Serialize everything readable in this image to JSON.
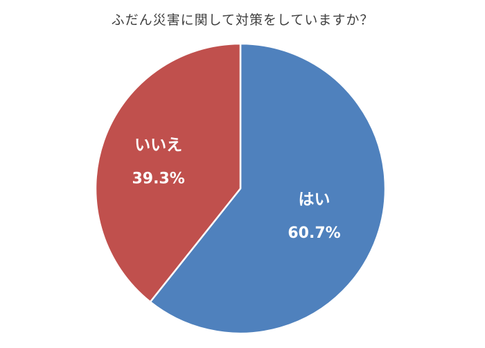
{
  "chart_data": {
    "type": "pie",
    "title": "ふだん災害に関して対策をしていますか？",
    "slices": [
      {
        "label": "はい",
        "value": 60.7,
        "value_label": "60.7%",
        "color": "#4F81BD"
      },
      {
        "label": "いいえ",
        "value": 39.3,
        "value_label": "39.3%",
        "color": "#C0504D"
      }
    ],
    "start": "12 o'clock",
    "direction": "clockwise",
    "legend": "none (labels inside slices)"
  }
}
